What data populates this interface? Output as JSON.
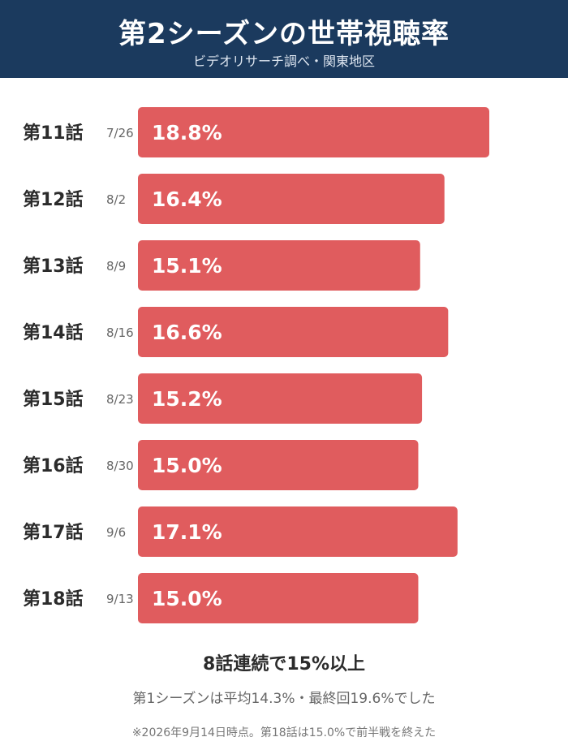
{
  "header": {
    "title": "第2シーズンの世帯視聴率",
    "subtitle": "ビデオリサーチ調べ・関東地区"
  },
  "chart_data": {
    "type": "bar",
    "orientation": "horizontal",
    "categories": [
      "第11話",
      "第12話",
      "第13話",
      "第14話",
      "第15話",
      "第16話",
      "第17話",
      "第18話"
    ],
    "dates": [
      "7/26",
      "8/2",
      "8/9",
      "8/16",
      "8/23",
      "8/30",
      "9/6",
      "9/13"
    ],
    "values": [
      18.8,
      16.4,
      15.1,
      16.6,
      15.2,
      15.0,
      17.1,
      15.0
    ],
    "value_labels": [
      "18.8%",
      "16.4%",
      "15.1%",
      "16.6%",
      "15.2%",
      "15.0%",
      "17.1%",
      "15.0%"
    ],
    "unit": "%",
    "bar_color": "#e05c5e",
    "grid": false,
    "legend": "none"
  },
  "footer": {
    "summary": "8話連続で15%以上",
    "note1": "第1シーズンは平均14.3%・最終回19.6%でした",
    "note2": "※2026年9月14日時点。第18話は15.0%で前半戦を終えた"
  },
  "colors": {
    "header_bg": "#1b3a5e",
    "bar": "#e05c5e"
  }
}
